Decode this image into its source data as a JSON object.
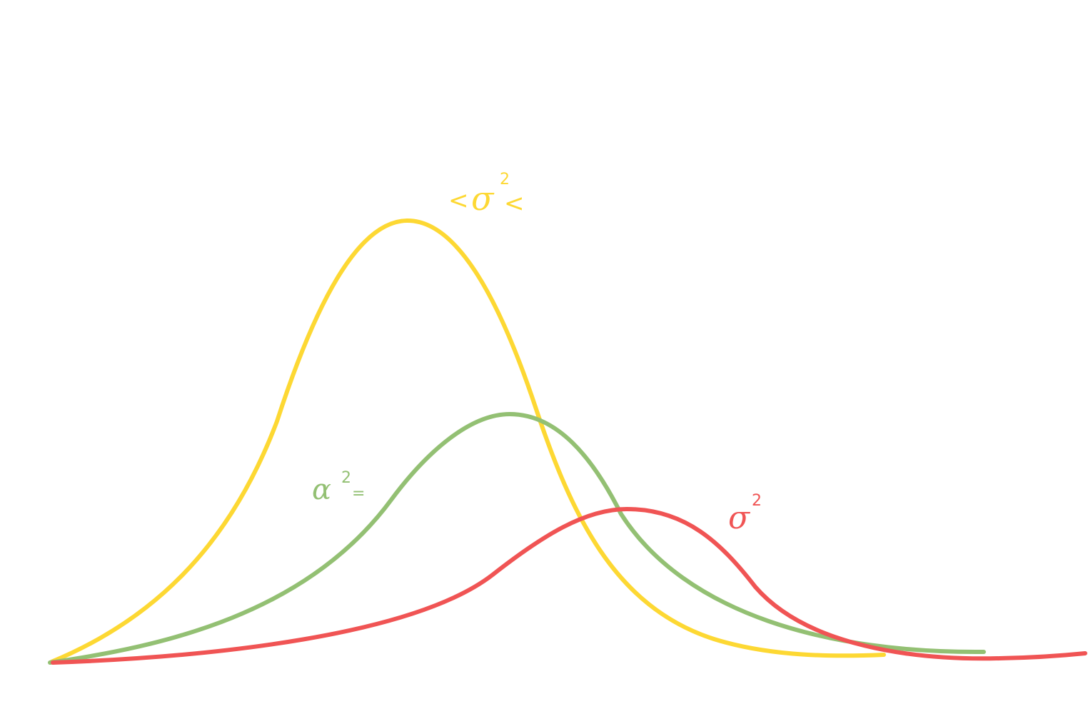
{
  "colors": {
    "yellow": "#FDD833",
    "green": "#93C073",
    "red": "#F05454",
    "background": "#FFFFFF"
  },
  "labels": {
    "yellow": {
      "lt_left": "<",
      "sigma": "σ",
      "superscript": "2",
      "lt_right": "<"
    },
    "green": {
      "alpha": "α",
      "superscript": "2",
      "equals": "="
    },
    "red": {
      "sigma": "σ",
      "superscript": "2"
    }
  }
}
